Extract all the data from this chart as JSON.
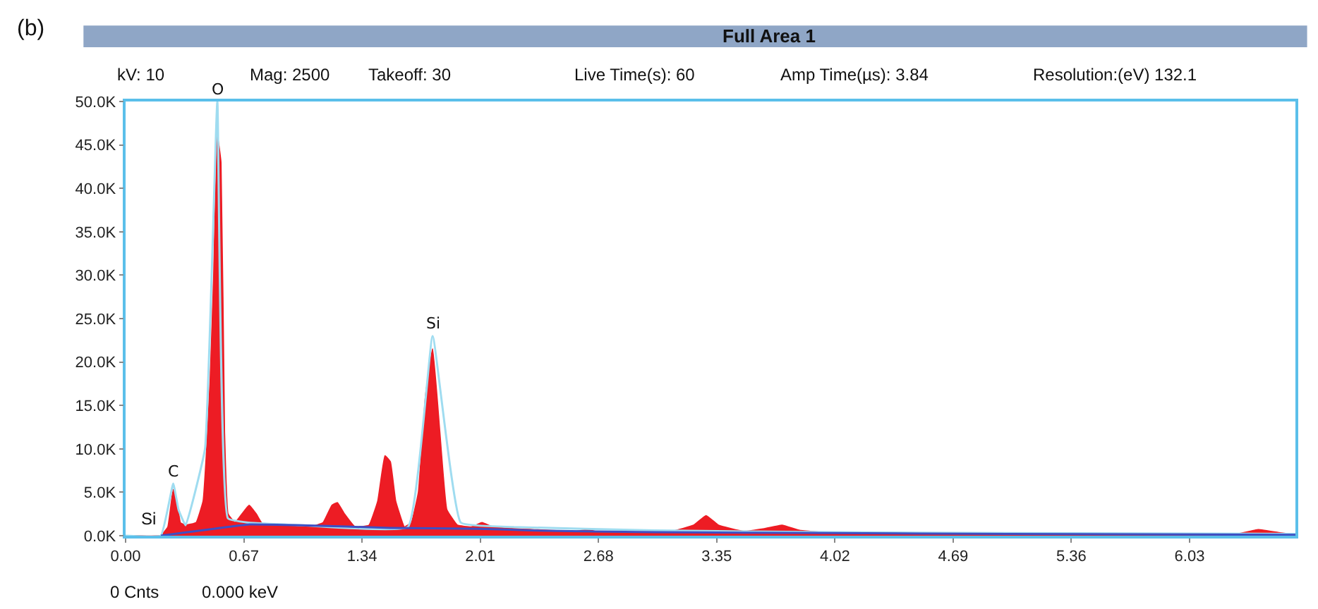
{
  "chart_data": {
    "type": "area",
    "title": "Full Area 1",
    "xlim": [
      0,
      6.63
    ],
    "ylim": [
      0,
      50000
    ],
    "xticks": [
      {
        "value": 0,
        "label": "0.00"
      },
      {
        "value": 0.67,
        "label": "0.67"
      },
      {
        "value": 1.34,
        "label": "1.34"
      },
      {
        "value": 2.01,
        "label": "2.01"
      },
      {
        "value": 2.68,
        "label": "2.68"
      },
      {
        "value": 3.35,
        "label": "3.35"
      },
      {
        "value": 4.02,
        "label": "4.02"
      },
      {
        "value": 4.69,
        "label": "4.69"
      },
      {
        "value": 5.36,
        "label": "5.36"
      },
      {
        "value": 6.03,
        "label": "6.03"
      }
    ],
    "yticks": [
      {
        "value": 0,
        "label": "0.0K"
      },
      {
        "value": 5000,
        "label": "5.0K"
      },
      {
        "value": 10000,
        "label": "10.0K"
      },
      {
        "value": 15000,
        "label": "15.0K"
      },
      {
        "value": 20000,
        "label": "20.0K"
      },
      {
        "value": 25000,
        "label": "25.0K"
      },
      {
        "value": 30000,
        "label": "30.0K"
      },
      {
        "value": 35000,
        "label": "35.0K"
      },
      {
        "value": 40000,
        "label": "40.0K"
      },
      {
        "value": 45000,
        "label": "45.0K"
      },
      {
        "value": 50000,
        "label": "50.0K"
      }
    ],
    "series": [
      {
        "color": "#ed1c24",
        "x": [
          0,
          0.2,
          0.24,
          0.27,
          0.29,
          0.31,
          0.34,
          0.4,
          0.44,
          0.46,
          0.48,
          0.5,
          0.52,
          0.54,
          0.56,
          0.58,
          0.62,
          0.66,
          0.7,
          0.74,
          0.78,
          0.9,
          1.05,
          1.12,
          1.17,
          1.2,
          1.24,
          1.3,
          1.38,
          1.43,
          1.47,
          1.5,
          1.53,
          1.58,
          1.62,
          1.66,
          1.7,
          1.74,
          1.78,
          1.82,
          1.88,
          1.96,
          2.02,
          2.08,
          2.2,
          2.55,
          2.62,
          2.68,
          3.1,
          3.22,
          3.29,
          3.36,
          3.5,
          3.62,
          3.72,
          3.82,
          4.0,
          5.0,
          6.3,
          6.42,
          6.55,
          6.63
        ],
        "values": [
          0,
          0,
          1000,
          5300,
          4000,
          1500,
          1200,
          1500,
          4000,
          10000,
          18000,
          30000,
          46000,
          43000,
          12000,
          2500,
          1500,
          2500,
          3500,
          2500,
          1200,
          1100,
          1000,
          1500,
          3500,
          3800,
          2500,
          1000,
          1200,
          4000,
          9200,
          8500,
          4000,
          1000,
          1500,
          5000,
          16000,
          21500,
          12000,
          3000,
          1200,
          1000,
          1500,
          1000,
          800,
          500,
          700,
          400,
          500,
          1200,
          2300,
          1200,
          500,
          800,
          1200,
          600,
          300,
          200,
          200,
          700,
          300,
          100
        ]
      },
      {
        "type": "line",
        "color": "#9fdcf0",
        "x": [
          0,
          0.2,
          0.27,
          0.3,
          0.34,
          0.45,
          0.52,
          0.58,
          0.7,
          1.0,
          1.6,
          1.74,
          1.9,
          2.2,
          3.0,
          4.0,
          5.0,
          6.63
        ],
        "values": [
          0,
          0,
          6000,
          3000,
          1200,
          10000,
          50000,
          2000,
          1500,
          1200,
          1000,
          23000,
          1500,
          1000,
          600,
          400,
          300,
          200
        ]
      },
      {
        "type": "line",
        "color": "#3d4fc4",
        "x": [
          0.2,
          0.5,
          0.7,
          1.0,
          1.5,
          2.0,
          2.3,
          3.0,
          4.0,
          5.0,
          6.63
        ],
        "values": [
          0,
          800,
          1300,
          1200,
          900,
          800,
          600,
          400,
          300,
          200,
          100
        ]
      }
    ],
    "annotations": [
      "(b)",
      "kV: 10",
      "Mag: 2500",
      "Takeoff: 30",
      "Live Time(s): 60",
      "Amp Time(µs): 3.84",
      "Resolution:(eV) 132.1",
      "0 Cnts",
      "0.000 keV",
      "Si",
      {
        "text": "C",
        "x": 0.27,
        "y": 6000
      },
      {
        "text": "O",
        "x": 0.52,
        "y": 50000
      },
      {
        "text": "Si",
        "x": 1.74,
        "y": 23000
      }
    ]
  }
}
